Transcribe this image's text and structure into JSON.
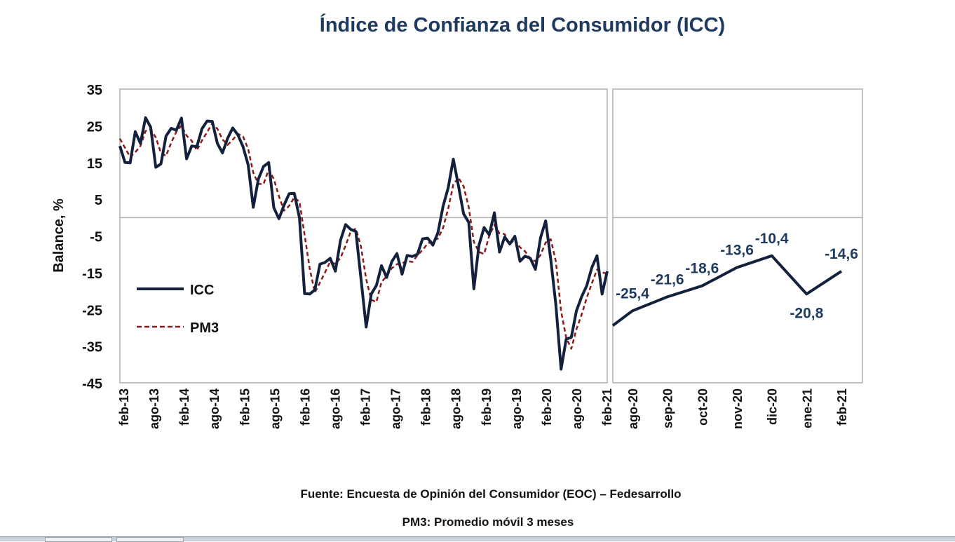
{
  "title": "Índice de Confianza del Consumidor (ICC)",
  "source": "Fuente: Encuesta de Opinión del Consumidor (EOC) – Fedesarrollo",
  "note": "PM3: Promedio móvil 3 meses",
  "colors": {
    "icc": "#14213d",
    "pm3": "#8b1a1a",
    "title": "#1f3a5f",
    "label": "#1f3a5f",
    "grid": "#b0b0b0"
  },
  "chart_data": [
    {
      "type": "line",
      "ylabel": "Balance, %",
      "ylim": [
        -45,
        35
      ],
      "yticks": [
        "35",
        "25",
        "15",
        "5",
        "-5",
        "-15",
        "-25",
        "-35",
        "-45"
      ],
      "xtick_labels": [
        "feb-13",
        "ago-13",
        "feb-14",
        "ago-14",
        "feb-15",
        "ago-15",
        "feb-16",
        "ago-16",
        "feb-17",
        "ago-17",
        "feb-18",
        "ago-18",
        "feb-19",
        "ago-19",
        "feb-20",
        "ago-20",
        "feb-21"
      ],
      "legend": [
        "ICC",
        "PM3"
      ],
      "legend_position": "left",
      "series": [
        {
          "name": "ICC",
          "values": [
            19.5,
            15,
            14.9,
            23.4,
            20.2,
            27.2,
            24.6,
            13.7,
            14.6,
            22.2,
            24.3,
            23.8,
            27.1,
            16,
            19.5,
            19.3,
            24.2,
            26.3,
            26.2,
            20.2,
            17.6,
            21.6,
            24.4,
            22.5,
            19.3,
            14.4,
            2.8,
            10.5,
            13.9,
            15,
            2.7,
            -0.3,
            3.4,
            6.5,
            6.6,
            -0.1,
            -20.7,
            -20.8,
            -19.7,
            -12.7,
            -12.2,
            -11.1,
            -14.6,
            -6.2,
            -1.9,
            -3.2,
            -3.8,
            -16.6,
            -29.8,
            -20.8,
            -18.5,
            -13.1,
            -16.3,
            -12,
            -9.8,
            -15.4,
            -10.3,
            -10.6,
            -10,
            -5.8,
            -5.6,
            -7.5,
            -4.1,
            3.1,
            8.1,
            15.9,
            8.7,
            1,
            -1.3,
            -19.4,
            -7.5,
            -2.7,
            -4.7,
            1.3,
            -9.4,
            -5.3,
            -7.2,
            -5.1,
            -11.9,
            -10.5,
            -11.1,
            -14.1,
            -5.5,
            -0.9,
            -11.4,
            -23.8,
            -41.3,
            -33.1,
            -32.6,
            -25.4,
            -21.6,
            -18.6,
            -13.6,
            -10.4,
            -20.8,
            -14.6
          ]
        },
        {
          "name": "PM3",
          "values": [
            21.5,
            19,
            16.5,
            17.8,
            19.5,
            23.6,
            24,
            21.8,
            17.6,
            16.8,
            20.4,
            23.4,
            25.1,
            22.3,
            20.9,
            18.3,
            21,
            23.3,
            25.6,
            24.2,
            21.3,
            19.8,
            21.2,
            22.8,
            22.1,
            18.7,
            12.2,
            9.2,
            9.1,
            13.1,
            10.5,
            5.8,
            1.9,
            3.2,
            5.5,
            4.3,
            -4.7,
            -13.9,
            -20.4,
            -17.7,
            -14.9,
            -12,
            -12.6,
            -11,
            -7.6,
            -3.8,
            -3,
            -7.9,
            -16.7,
            -22.4,
            -23,
            -17.5,
            -16,
            -13.8,
            -12.7,
            -12.4,
            -11.8,
            -12.1,
            -10.3,
            -8.8,
            -7.1,
            -6.3,
            -5.7,
            -2.8,
            2.4,
            9,
            10.9,
            8.5,
            2.8,
            -6.6,
            -9.4,
            -9.9,
            -5,
            -2,
            -4.3,
            -4.5,
            -7.3,
            -5.9,
            -8.1,
            -9.2,
            -11.2,
            -11.9,
            -10.2,
            -6.8,
            -5.9,
            -12,
            -25.5,
            -32.7,
            -35.7,
            -30.4,
            -26.5,
            -21.9,
            -17.9,
            -14.2,
            -14.9,
            -15.3
          ]
        }
      ]
    },
    {
      "type": "line",
      "categories": [
        "ago-20",
        "sep-20",
        "oct-20",
        "nov-20",
        "dic-20",
        "ene-21",
        "feb-21"
      ],
      "series": [
        {
          "name": "ICC",
          "values": [
            -25.4,
            -21.6,
            -18.6,
            -13.6,
            -10.4,
            -20.8,
            -14.6
          ]
        }
      ],
      "data_labels": [
        "-25,4",
        "-21,6",
        "-18,6",
        "-13,6",
        "-10,4",
        "-20,8",
        "-14,6"
      ],
      "ylim": [
        -45,
        35
      ]
    }
  ]
}
